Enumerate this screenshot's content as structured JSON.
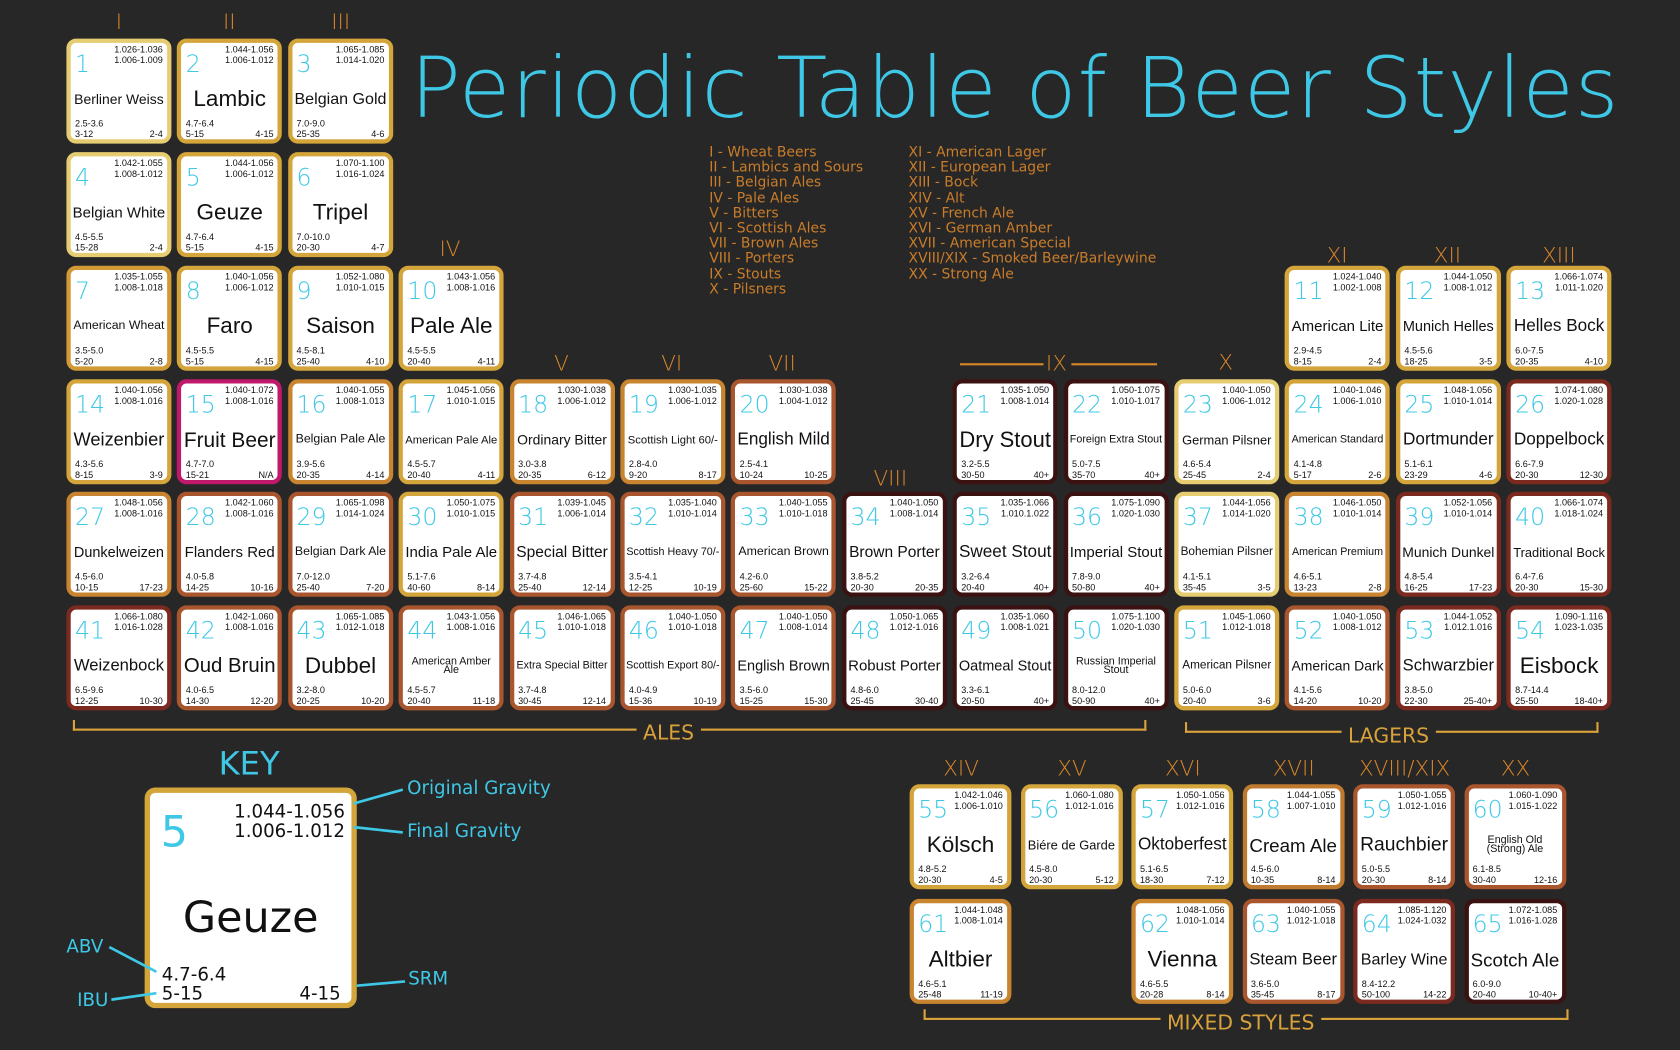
{
  "title": "Periodic Table of Beer Styles",
  "group_labels": [
    "I",
    "II",
    "III",
    "IV",
    "V",
    "VI",
    "VII",
    "VIII",
    "IX",
    "X",
    "XI",
    "XII",
    "XIII"
  ],
  "mixed_labels": [
    "XIV",
    "XV",
    "XVI",
    "XVII",
    "XVIII/XIX",
    "XX"
  ],
  "legend": {
    "col1": [
      "I - Wheat Beers",
      "II - Lambics and Sours",
      "III - Belgian Ales",
      "IV - Pale Ales",
      "V - Bitters",
      "VI - Scottish Ales",
      "VII - Brown Ales",
      "VIII - Porters",
      "IX - Stouts",
      "X - Pilsners"
    ],
    "col2": [
      "XI - American Lager",
      "XII - European Lager",
      "XIII - Bock",
      "XIV - Alt",
      "XV - French Ale",
      "XVI - German Amber",
      "XVII - American Special",
      "XVIII/XIX - Smoked Beer/Barleywine",
      "XX - Strong Ale"
    ]
  },
  "sections": {
    "ales": "ALES",
    "lagers": "LAGERS",
    "mixed": "MIXED STYLES"
  },
  "colors": {
    "title": "#3ec8e6",
    "group_label": "#d9862a",
    "number": "#3ec8e6",
    "background": "#272727"
  },
  "key": {
    "title": "KEY",
    "number": "5",
    "name": "Geuze",
    "og": "1.044-1.056",
    "fg": "1.006-1.012",
    "abv": "4.7-6.4",
    "ibu": "5-15",
    "srm": "4-15",
    "labels": {
      "og": "Original Gravity",
      "fg": "Final Gravity",
      "abv": "ABV",
      "ibu": "IBU",
      "srm": "SRM"
    }
  },
  "elements": [
    {
      "n": "1",
      "name": "Berliner Weiss",
      "og": "1.026-1.036",
      "fg": "1.006-1.009",
      "abv": "2.5-3.6",
      "ibu": "3-12",
      "srm": "2-4",
      "color": "#e6cd72"
    },
    {
      "n": "2",
      "name": "Lambic",
      "og": "1.044-1.056",
      "fg": "1.006-1.012",
      "abv": "4.7-6.4",
      "ibu": "5-15",
      "srm": "4-15",
      "color": "#d4a53a"
    },
    {
      "n": "3",
      "name": "Belgian Gold",
      "og": "1.065-1.085",
      "fg": "1.014-1.020",
      "abv": "7.0-9.0",
      "ibu": "25-35",
      "srm": "4-6",
      "color": "#d4a53a"
    },
    {
      "n": "4",
      "name": "Belgian White",
      "og": "1.042-1.055",
      "fg": "1.008-1.012",
      "abv": "4.5-5.5",
      "ibu": "15-28",
      "srm": "2-4",
      "color": "#e6cd72"
    },
    {
      "n": "5",
      "name": "Geuze",
      "og": "1.044-1.056",
      "fg": "1.006-1.012",
      "abv": "4.7-6.4",
      "ibu": "5-15",
      "srm": "4-15",
      "color": "#d4a53a"
    },
    {
      "n": "6",
      "name": "Tripel",
      "og": "1.070-1.100",
      "fg": "1.016-1.024",
      "abv": "7.0-10.0",
      "ibu": "20-30",
      "srm": "4-7",
      "color": "#d4a53a"
    },
    {
      "n": "7",
      "name": "American Wheat",
      "og": "1.035-1.055",
      "fg": "1.008-1.018",
      "abv": "3.5-5.0",
      "ibu": "5-20",
      "srm": "2-8",
      "color": "#d19a35"
    },
    {
      "n": "8",
      "name": "Faro",
      "og": "1.040-1.056",
      "fg": "1.006-1.012",
      "abv": "4.5-5.5",
      "ibu": "5-15",
      "srm": "4-15",
      "color": "#d4a53a"
    },
    {
      "n": "9",
      "name": "Saison",
      "og": "1.052-1.080",
      "fg": "1.010-1.015",
      "abv": "4.5-8.1",
      "ibu": "25-40",
      "srm": "4-10",
      "color": "#d4a53a"
    },
    {
      "n": "10",
      "name": "Pale Ale",
      "og": "1.043-1.056",
      "fg": "1.008-1.016",
      "abv": "4.5-5.5",
      "ibu": "20-40",
      "srm": "4-11",
      "color": "#d4a53a"
    },
    {
      "n": "11",
      "name": "American Lite",
      "og": "1.024-1.040",
      "fg": "1.002-1.008",
      "abv": "2.9-4.5",
      "ibu": "8-15",
      "srm": "2-4",
      "color": "#d4a53a"
    },
    {
      "n": "12",
      "name": "Munich Helles",
      "og": "1.044-1.050",
      "fg": "1.008-1.012",
      "abv": "4.5-5.6",
      "ibu": "18-25",
      "srm": "3-5",
      "color": "#d4a53a"
    },
    {
      "n": "13",
      "name": "Helles Bock",
      "og": "1.066-1.074",
      "fg": "1.011-1.020",
      "abv": "6.0-7.5",
      "ibu": "20-35",
      "srm": "4-10",
      "color": "#d4a53a"
    },
    {
      "n": "14",
      "name": "Weizenbier",
      "og": "1.040-1.056",
      "fg": "1.008-1.016",
      "abv": "4.3-5.6",
      "ibu": "8-15",
      "srm": "3-9",
      "color": "#d4a53a"
    },
    {
      "n": "15",
      "name": "Fruit Beer",
      "og": "1.040-1.072",
      "fg": "1.008-1.016",
      "abv": "4.7-7.0",
      "ibu": "15-21",
      "srm": "N/A",
      "color": "#c0186b"
    },
    {
      "n": "16",
      "name": "Belgian Pale Ale",
      "og": "1.040-1.055",
      "fg": "1.008-1.013",
      "abv": "3.9-5.6",
      "ibu": "20-35",
      "srm": "4-14",
      "color": "#c8842f"
    },
    {
      "n": "17",
      "name": "American Pale Ale",
      "og": "1.045-1.056",
      "fg": "1.010-1.015",
      "abv": "4.5-5.7",
      "ibu": "20-40",
      "srm": "4-11",
      "color": "#d4a53a"
    },
    {
      "n": "18",
      "name": "Ordinary Bitter",
      "og": "1.030-1.038",
      "fg": "1.006-1.012",
      "abv": "3.0-3.8",
      "ibu": "20-35",
      "srm": "6-12",
      "color": "#c8842f"
    },
    {
      "n": "19",
      "name": "Scottish Light 60/-",
      "og": "1.030-1.035",
      "fg": "1.006-1.012",
      "abv": "2.8-4.0",
      "ibu": "9-20",
      "srm": "8-17",
      "color": "#c8842f"
    },
    {
      "n": "20",
      "name": "English Mild",
      "og": "1.030-1.038",
      "fg": "1.004-1.012",
      "abv": "2.5-4.1",
      "ibu": "10-24",
      "srm": "10-25",
      "color": "#a9552e"
    },
    {
      "n": "21",
      "name": "Dry Stout",
      "og": "1.035-1.050",
      "fg": "1.008-1.014",
      "abv": "3.2-5.5",
      "ibu": "30-50",
      "srm": "40+",
      "color": "#3b1212"
    },
    {
      "n": "22",
      "name": "Foreign Extra Stout",
      "og": "1.050-1.075",
      "fg": "1.010-1.017",
      "abv": "5.0-7.5",
      "ibu": "35-70",
      "srm": "40+",
      "color": "#3b1212"
    },
    {
      "n": "23",
      "name": "German Pilsner",
      "og": "1.040-1.050",
      "fg": "1.006-1.012",
      "abv": "4.6-5.4",
      "ibu": "25-45",
      "srm": "2-4",
      "color": "#e6cd72"
    },
    {
      "n": "24",
      "name": "American Standard",
      "og": "1.040-1.046",
      "fg": "1.006-1.010",
      "abv": "4.1-4.8",
      "ibu": "5-17",
      "srm": "2-6",
      "color": "#d4a53a"
    },
    {
      "n": "25",
      "name": "Dortmunder",
      "og": "1.048-1.056",
      "fg": "1.010-1.014",
      "abv": "5.1-6.1",
      "ibu": "23-29",
      "srm": "4-6",
      "color": "#d4a53a"
    },
    {
      "n": "26",
      "name": "Doppelbock",
      "og": "1.074-1.080",
      "fg": "1.020-1.028",
      "abv": "6.6-7.9",
      "ibu": "20-30",
      "srm": "12-30",
      "color": "#7c2a1f"
    },
    {
      "n": "27",
      "name": "Dunkelweizen",
      "og": "1.048-1.056",
      "fg": "1.008-1.016",
      "abv": "4.5-6.0",
      "ibu": "10-15",
      "srm": "17-23",
      "color": "#c8842f"
    },
    {
      "n": "28",
      "name": "Flanders Red",
      "og": "1.042-1.060",
      "fg": "1.008-1.016",
      "abv": "4.0-5.8",
      "ibu": "14-25",
      "srm": "10-16",
      "color": "#a9552e"
    },
    {
      "n": "29",
      "name": "Belgian Dark Ale",
      "og": "1.065-1.098",
      "fg": "1.014-1.024",
      "abv": "7.0-12.0",
      "ibu": "25-40",
      "srm": "7-20",
      "color": "#a9552e"
    },
    {
      "n": "30",
      "name": "India Pale Ale",
      "og": "1.050-1.075",
      "fg": "1.010-1.015",
      "abv": "5.1-7.6",
      "ibu": "40-60",
      "srm": "8-14",
      "color": "#d4a53a"
    },
    {
      "n": "31",
      "name": "Special Bitter",
      "og": "1.039-1.045",
      "fg": "1.006-1.014",
      "abv": "3.7-4.8",
      "ibu": "25-40",
      "srm": "12-14",
      "color": "#a9552e"
    },
    {
      "n": "32",
      "name": "Scottish Heavy 70/-",
      "og": "1.035-1.040",
      "fg": "1.010-1.014",
      "abv": "3.5-4.1",
      "ibu": "12-25",
      "srm": "10-19",
      "color": "#a9552e"
    },
    {
      "n": "33",
      "name": "American Brown",
      "og": "1.040-1.055",
      "fg": "1.010-1.018",
      "abv": "4.2-6.0",
      "ibu": "25-60",
      "srm": "15-22",
      "color": "#a9552e"
    },
    {
      "n": "34",
      "name": "Brown Porter",
      "og": "1.040-1.050",
      "fg": "1.008-1.014",
      "abv": "3.8-5.2",
      "ibu": "20-30",
      "srm": "20-35",
      "color": "#3b1212"
    },
    {
      "n": "35",
      "name": "Sweet Stout",
      "og": "1.035-1.066",
      "fg": "1.010.1.022",
      "abv": "3.2-6.4",
      "ibu": "20-40",
      "srm": "40+",
      "color": "#3b1212"
    },
    {
      "n": "36",
      "name": "Imperial Stout",
      "og": "1.075-1.090",
      "fg": "1.020-1.030",
      "abv": "7.8-9.0",
      "ibu": "50-80",
      "srm": "40+",
      "color": "#3b1212"
    },
    {
      "n": "37",
      "name": "Bohemian Pilsner",
      "og": "1.044-1.056",
      "fg": "1.014-1.020",
      "abv": "4.1-5.1",
      "ibu": "35-45",
      "srm": "3-5",
      "color": "#e6cd72"
    },
    {
      "n": "38",
      "name": "American Premium",
      "og": "1.046-1.050",
      "fg": "1.010-1.014",
      "abv": "4.6-5.1",
      "ibu": "13-23",
      "srm": "2-8",
      "color": "#c8842f"
    },
    {
      "n": "39",
      "name": "Munich Dunkel",
      "og": "1.052-1.056",
      "fg": "1.010-1.014",
      "abv": "4.8-5.4",
      "ibu": "16-25",
      "srm": "17-23",
      "color": "#7c2a1f"
    },
    {
      "n": "40",
      "name": "Traditional Bock",
      "og": "1.066-1.074",
      "fg": "1.018-1.024",
      "abv": "6.4-7.6",
      "ibu": "20-30",
      "srm": "15-30",
      "color": "#7c2a1f"
    },
    {
      "n": "41",
      "name": "Weizenbock",
      "og": "1.066-1.080",
      "fg": "1.016-1.028",
      "abv": "6.5-9.6",
      "ibu": "12-25",
      "srm": "10-30",
      "color": "#7c2a1f"
    },
    {
      "n": "42",
      "name": "Oud Bruin",
      "og": "1.042-1.060",
      "fg": "1.008-1.016",
      "abv": "4.0-6.5",
      "ibu": "14-30",
      "srm": "12-20",
      "color": "#a9552e"
    },
    {
      "n": "43",
      "name": "Dubbel",
      "og": "1.065-1.085",
      "fg": "1.012-1.018",
      "abv": "3.2-8.0",
      "ibu": "20-25",
      "srm": "10-20",
      "color": "#a9552e"
    },
    {
      "n": "44",
      "name": "American Amber Ale",
      "og": "1.043-1.056",
      "fg": "1.008-1.016",
      "abv": "4.5-5.7",
      "ibu": "20-40",
      "srm": "11-18",
      "color": "#a9552e"
    },
    {
      "n": "45",
      "name": "Extra Special Bitter",
      "og": "1.046-1.065",
      "fg": "1.010-1.018",
      "abv": "3.7-4.8",
      "ibu": "30-45",
      "srm": "12-14",
      "color": "#a9552e"
    },
    {
      "n": "46",
      "name": "Scottish Export 80/-",
      "og": "1.040-1.050",
      "fg": "1.010-1.018",
      "abv": "4.0-4.9",
      "ibu": "15-36",
      "srm": "10-19",
      "color": "#a9552e"
    },
    {
      "n": "47",
      "name": "English Brown",
      "og": "1.040-1.050",
      "fg": "1.008-1.014",
      "abv": "3.5-6.0",
      "ibu": "15-25",
      "srm": "15-30",
      "color": "#a9552e"
    },
    {
      "n": "48",
      "name": "Robust Porter",
      "og": "1.050-1.065",
      "fg": "1.012-1.016",
      "abv": "4.8-6.0",
      "ibu": "25-45",
      "srm": "30-40",
      "color": "#3b1212"
    },
    {
      "n": "49",
      "name": "Oatmeal Stout",
      "og": "1.035-1.060",
      "fg": "1.008-1.021",
      "abv": "3.3-6.1",
      "ibu": "20-50",
      "srm": "40+",
      "color": "#3b1212"
    },
    {
      "n": "50",
      "name": "Russian Imperial Stout",
      "og": "1.075-1.100",
      "fg": "1.020-1.030",
      "abv": "8.0-12.0",
      "ibu": "50-90",
      "srm": "40+",
      "color": "#3b1212"
    },
    {
      "n": "51",
      "name": "American Pilsner",
      "og": "1.045-1.060",
      "fg": "1.012-1.018",
      "abv": "5.0-6.0",
      "ibu": "20-40",
      "srm": "3-6",
      "color": "#d4a53a"
    },
    {
      "n": "52",
      "name": "American Dark",
      "og": "1.040-1.050",
      "fg": "1.008-1.012",
      "abv": "4.1-5.6",
      "ibu": "14-20",
      "srm": "10-20",
      "color": "#a9552e"
    },
    {
      "n": "53",
      "name": "Schwarzbier",
      "og": "1.044-1.052",
      "fg": "1.012.1.016",
      "abv": "3.8-5.0",
      "ibu": "22-30",
      "srm": "25-40+",
      "color": "#7c2a1f"
    },
    {
      "n": "54",
      "name": "Eisbock",
      "og": "1.090-1.116",
      "fg": "1.023-1.035",
      "abv": "8.7-14.4",
      "ibu": "25-50",
      "srm": "18-40+",
      "color": "#7c2a1f"
    },
    {
      "n": "55",
      "name": "Kölsch",
      "og": "1.042-1.046",
      "fg": "1.006-1.010",
      "abv": "4.8-5.2",
      "ibu": "20-30",
      "srm": "4-5",
      "color": "#d4a53a"
    },
    {
      "n": "56",
      "name": "Biére de Garde",
      "og": "1.060-1.080",
      "fg": "1.012-1.016",
      "abv": "4.5-8.0",
      "ibu": "20-30",
      "srm": "5-12",
      "color": "#d4a53a"
    },
    {
      "n": "57",
      "name": "Oktoberfest",
      "og": "1.050-1.056",
      "fg": "1.012-1.016",
      "abv": "5.1-6.5",
      "ibu": "18-30",
      "srm": "7-12",
      "color": "#d4a53a"
    },
    {
      "n": "58",
      "name": "Cream Ale",
      "og": "1.044-1.055",
      "fg": "1.007-1.010",
      "abv": "4.5-6.0",
      "ibu": "10-35",
      "srm": "8-14",
      "color": "#c07a30"
    },
    {
      "n": "59",
      "name": "Rauchbier",
      "og": "1.050-1.055",
      "fg": "1.012-1.016",
      "abv": "5.0-5.5",
      "ibu": "20-30",
      "srm": "8-14",
      "color": "#a9552e"
    },
    {
      "n": "60",
      "name": "English Old (Strong) Ale",
      "og": "1.060-1.090",
      "fg": "1.015-1.022",
      "abv": "6.1-8.5",
      "ibu": "30-40",
      "srm": "12-16",
      "color": "#a9552e"
    },
    {
      "n": "61",
      "name": "Altbier",
      "og": "1.044-1.048",
      "fg": "1.008-1.014",
      "abv": "4.6-5.1",
      "ibu": "25-48",
      "srm": "11-19",
      "color": "#c8842f"
    },
    {
      "n": "62",
      "name": "Vienna",
      "og": "1.048-1.056",
      "fg": "1.010-1.014",
      "abv": "4.6-5.5",
      "ibu": "20-28",
      "srm": "8-14",
      "color": "#c8842f"
    },
    {
      "n": "63",
      "name": "Steam Beer",
      "og": "1.040-1.055",
      "fg": "1.012-1.018",
      "abv": "3.6-5.0",
      "ibu": "35-45",
      "srm": "8-17",
      "color": "#a9552e"
    },
    {
      "n": "64",
      "name": "Barley Wine",
      "og": "1.085-1.120",
      "fg": "1.024-1.032",
      "abv": "8.4-12.2",
      "ibu": "50-100",
      "srm": "14-22",
      "color": "#7c2a1f"
    },
    {
      "n": "65",
      "name": "Scotch Ale",
      "og": "1.072-1.085",
      "fg": "1.016-1.028",
      "abv": "6.0-9.0",
      "ibu": "20-40",
      "srm": "10-40+",
      "color": "#3b1212"
    }
  ]
}
